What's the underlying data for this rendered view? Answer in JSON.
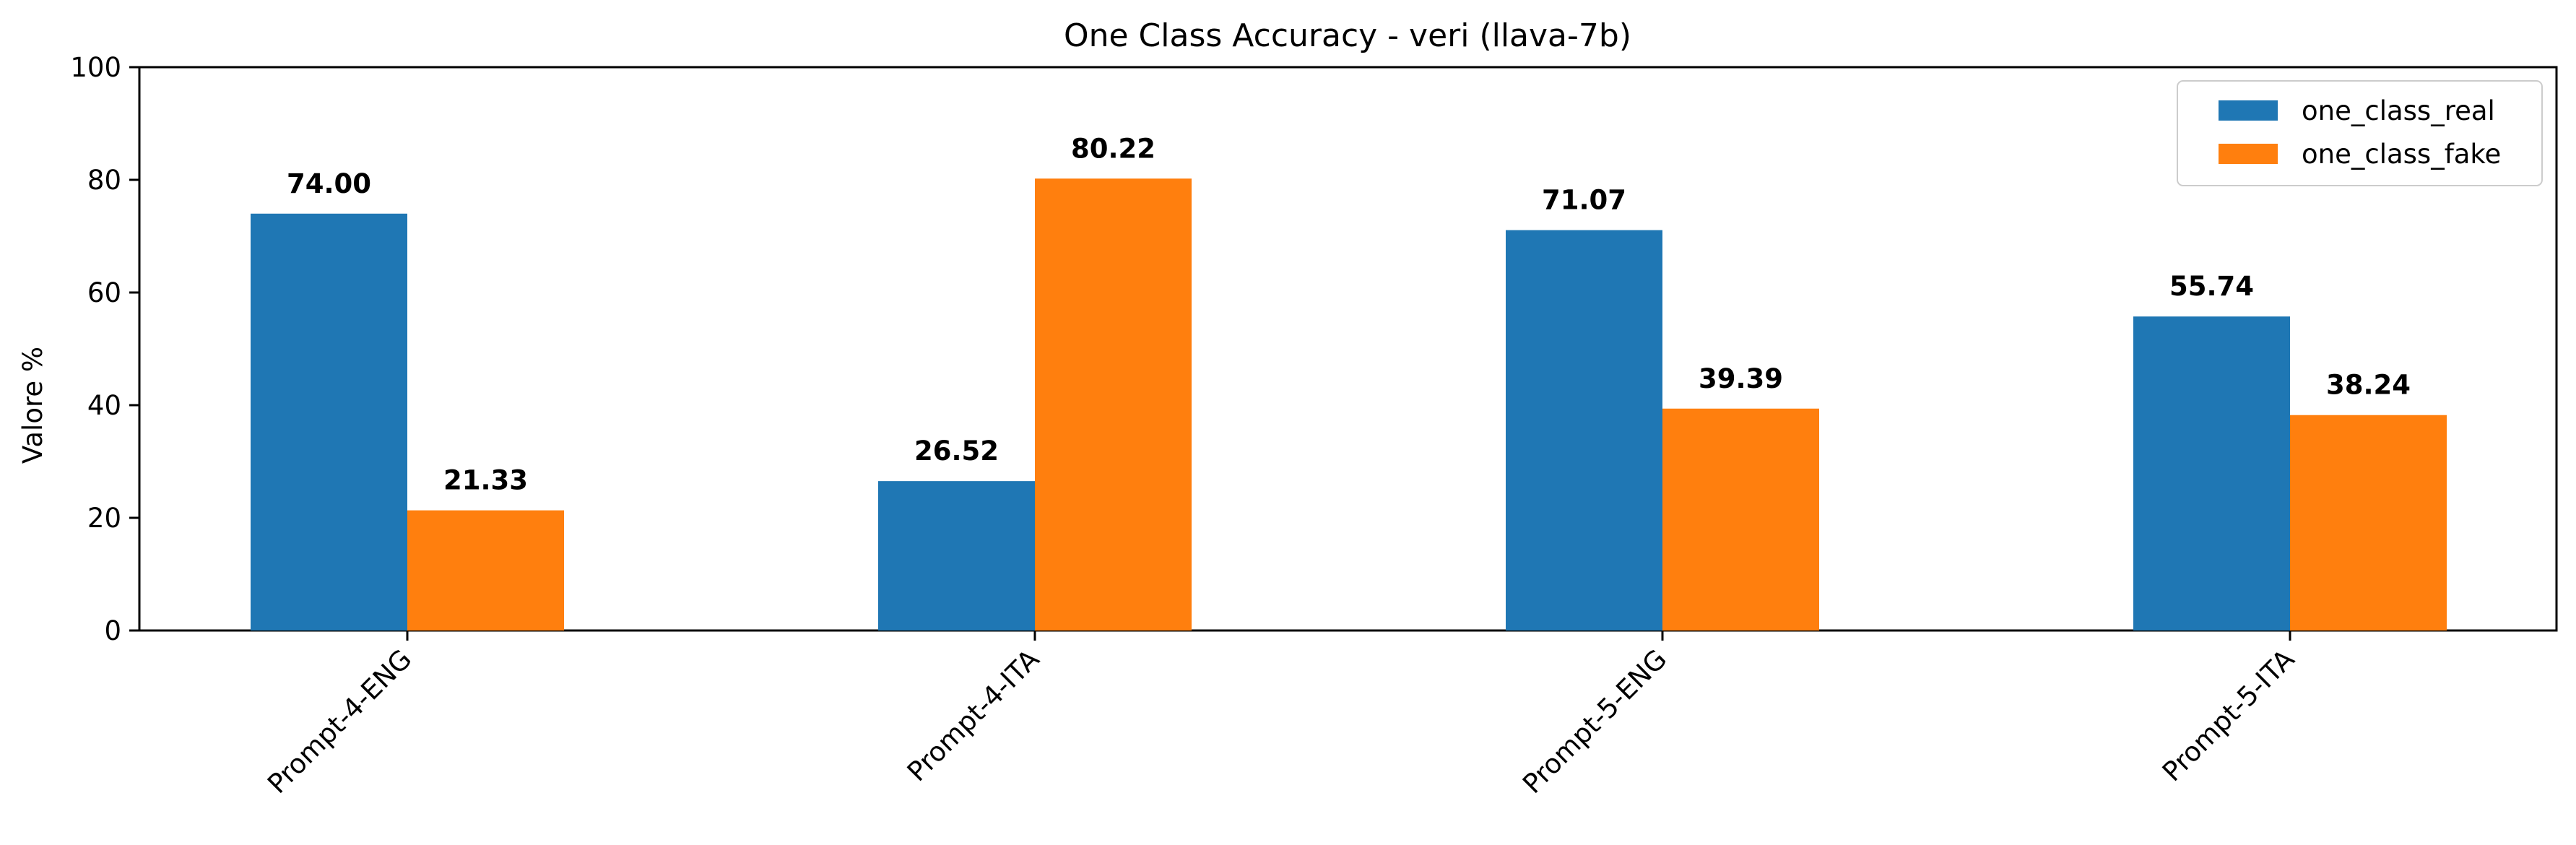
{
  "chart_data": {
    "type": "bar",
    "title": "One Class Accuracy - veri (llava-7b)",
    "xlabel": "",
    "ylabel": "Valore %",
    "ylim": [
      0,
      100
    ],
    "yticks": [
      "0",
      "20",
      "40",
      "60",
      "80",
      "100"
    ],
    "categories": [
      "Prompt-4-ENG",
      "Prompt-4-ITA",
      "Prompt-5-ENG",
      "Prompt-5-ITA"
    ],
    "series": [
      {
        "name": "one_class_real",
        "color": "#1f77b4",
        "values": [
          74.0,
          26.52,
          71.07,
          55.74
        ],
        "labels": [
          "74.00",
          "26.52",
          "71.07",
          "55.74"
        ]
      },
      {
        "name": "one_class_fake",
        "color": "#ff7f0e",
        "values": [
          21.33,
          80.22,
          39.39,
          38.24
        ],
        "labels": [
          "21.33",
          "80.22",
          "39.39",
          "38.24"
        ]
      }
    ],
    "grid": false,
    "legend": "top-right"
  }
}
